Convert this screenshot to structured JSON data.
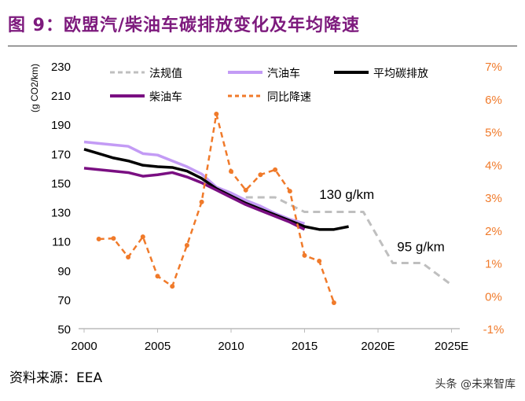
{
  "title": "图 9：欧盟汽/柴油车碳排放变化及年均降速",
  "source": "资料来源：EEA",
  "watermark": "头条 @未来智库",
  "chart_data": {
    "type": "line",
    "title": "",
    "ylabel": "(g CO2/km)",
    "y2label": "",
    "x_ticks": [
      "2000",
      "2005",
      "2010",
      "2015",
      "2020E",
      "2025E"
    ],
    "x_tick_years": [
      2000,
      2005,
      2010,
      2015,
      2020,
      2025
    ],
    "xlim": [
      2000,
      2025.8
    ],
    "ylim": [
      50,
      230
    ],
    "y_ticks": [
      50,
      70,
      90,
      110,
      130,
      150,
      170,
      190,
      210,
      230
    ],
    "y2lim": [
      -1,
      7
    ],
    "y2_ticks": [
      "-1%",
      "0%",
      "1%",
      "2%",
      "3%",
      "4%",
      "5%",
      "6%",
      "7%"
    ],
    "grid": false,
    "legend": "top",
    "annotations": [
      {
        "text": "130 g/km",
        "x": 2016,
        "y": 139
      },
      {
        "text": "95 g/km",
        "x": 2021.3,
        "y": 103
      }
    ],
    "series": [
      {
        "name": "法规值",
        "axis": "left",
        "color": "#bfbfbf",
        "style": "dashed",
        "x": [
          2011,
          2013,
          2015,
          2019,
          2021,
          2023,
          2025
        ],
        "y": [
          140,
          140,
          130,
          130,
          95,
          95,
          80
        ]
      },
      {
        "name": "汽油车",
        "axis": "left",
        "color": "#c39bf5",
        "style": "solid",
        "x": [
          2000,
          2001,
          2002,
          2003,
          2004,
          2005,
          2006,
          2007,
          2008,
          2009,
          2010,
          2011,
          2012,
          2013,
          2014,
          2015
        ],
        "y": [
          178,
          177,
          176,
          175,
          170,
          169,
          165,
          161,
          156,
          147,
          143,
          138,
          134,
          129,
          125,
          122
        ]
      },
      {
        "name": "平均碳排放",
        "axis": "left",
        "color": "#000000",
        "style": "solid",
        "x": [
          2000,
          2001,
          2002,
          2003,
          2004,
          2005,
          2006,
          2007,
          2008,
          2009,
          2010,
          2011,
          2012,
          2013,
          2014,
          2015,
          2016,
          2017,
          2018
        ],
        "y": [
          173,
          170,
          167,
          165,
          162,
          161,
          160.5,
          158,
          153,
          146,
          141,
          136,
          132,
          128,
          124,
          120,
          118,
          118,
          120
        ]
      },
      {
        "name": "柴油车",
        "axis": "left",
        "color": "#7a0f82",
        "style": "solid",
        "x": [
          2000,
          2001,
          2002,
          2003,
          2004,
          2005,
          2006,
          2007,
          2008,
          2009,
          2010,
          2011,
          2012,
          2013,
          2014,
          2015
        ],
        "y": [
          160,
          159,
          158,
          157,
          154.5,
          155.5,
          157,
          154,
          150,
          145,
          140,
          135,
          131,
          127,
          123,
          118
        ]
      },
      {
        "name": "同比降速",
        "axis": "right",
        "color": "#f07a2a",
        "style": "dashdot-markers",
        "x": [
          2001,
          2002,
          2003,
          2004,
          2005,
          2006,
          2007,
          2008,
          2009,
          2010,
          2011,
          2012,
          2013,
          2014,
          2015,
          2016,
          2017
        ],
        "y": [
          1.73,
          1.75,
          1.18,
          1.8,
          0.6,
          0.29,
          1.54,
          2.86,
          5.54,
          3.79,
          3.22,
          3.69,
          3.84,
          3.19,
          1.23,
          1.06,
          -0.21
        ]
      }
    ]
  }
}
